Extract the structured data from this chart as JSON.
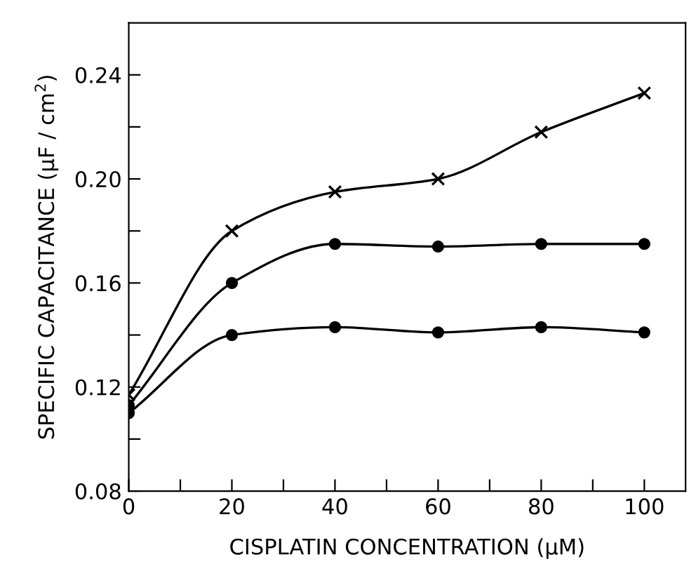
{
  "chart_data": {
    "type": "line",
    "xlabel": "CISPLATIN CONCENTRATION (μM)",
    "ylabel": "SPECIFIC CAPACITANCE (μF / cm$^{2}$)",
    "x": [
      0,
      20,
      40,
      60,
      80,
      100
    ],
    "series": [
      {
        "color": "#000000",
        "marker": "cross",
        "values": [
          0.117,
          0.18,
          0.195,
          0.2,
          0.218,
          0.233
        ]
      },
      {
        "color": "#000000",
        "marker": "circle",
        "values": [
          0.113,
          0.16,
          0.175,
          0.174,
          0.175,
          0.175
        ]
      },
      {
        "color": "#000000",
        "marker": "circle",
        "values": [
          0.11,
          0.14,
          0.143,
          0.141,
          0.143,
          0.141
        ]
      }
    ],
    "xlim": [
      0,
      108
    ],
    "xticks": [
      0,
      {
        "value": 10,
        "label": null
      },
      20,
      {
        "value": 30,
        "label": null
      },
      40,
      {
        "value": 50,
        "label": null
      },
      60,
      {
        "value": 70,
        "label": null
      },
      80,
      {
        "value": 90,
        "label": null
      },
      100
    ],
    "ylim": [
      0.08,
      0.26
    ],
    "yticks": [
      0.08,
      {
        "value": 0.1,
        "label": null
      },
      0.12,
      {
        "value": 0.14,
        "label": null
      },
      0.16,
      {
        "value": 0.18,
        "label": null
      },
      {
        "value": 0.2,
        "label": "0.20"
      },
      {
        "value": 0.22,
        "label": null
      },
      0.24
    ],
    "grid": false,
    "legend": false,
    "line_style": "solid"
  }
}
